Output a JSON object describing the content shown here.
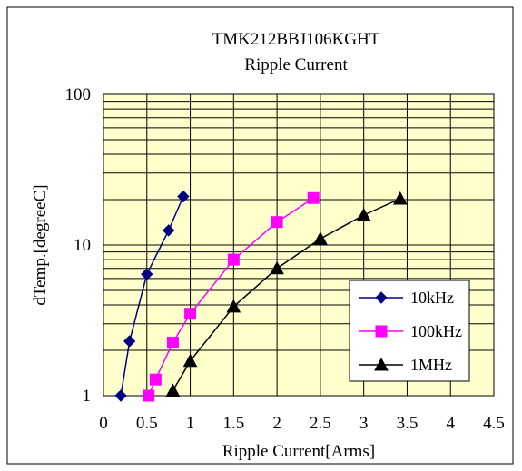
{
  "chart_data": {
    "type": "line",
    "title": "TMK212BBJ106KGHT",
    "subtitle": "Ripple Current",
    "xlabel": "Ripple Current[Arms]",
    "ylabel": "dTemp.[degreeC]",
    "xlim": [
      0,
      4.5
    ],
    "ylim": [
      1,
      100
    ],
    "yscale": "log",
    "grid": true,
    "legend_position": "bottom-right",
    "x_ticks": [
      "0",
      "0.5",
      "1",
      "1.5",
      "2",
      "2.5",
      "3",
      "3.5",
      "4",
      "4.5"
    ],
    "x_tick_values": [
      0,
      0.5,
      1,
      1.5,
      2,
      2.5,
      3,
      3.5,
      4,
      4.5
    ],
    "y_ticks": [
      "1",
      "10",
      "100"
    ],
    "y_tick_values": [
      1,
      10,
      100
    ],
    "plot_background": "#ffffcc",
    "series": [
      {
        "name": "10kHz",
        "color": "#000080",
        "marker": "diamond",
        "points": [
          [
            0.2,
            1.0
          ],
          [
            0.3,
            2.3
          ],
          [
            0.5,
            6.4
          ],
          [
            0.75,
            12.5
          ],
          [
            0.92,
            21.0
          ]
        ]
      },
      {
        "name": "100kHz",
        "color": "#ff00ff",
        "marker": "square",
        "points": [
          [
            0.52,
            1.0
          ],
          [
            0.6,
            1.28
          ],
          [
            0.8,
            2.25
          ],
          [
            1.0,
            3.5
          ],
          [
            1.5,
            8.0
          ],
          [
            2.0,
            14.2
          ],
          [
            2.42,
            20.5
          ]
        ]
      },
      {
        "name": "1MHz",
        "color": "#000000",
        "marker": "triangle",
        "points": [
          [
            0.8,
            1.08
          ],
          [
            1.0,
            1.7
          ],
          [
            1.5,
            3.9
          ],
          [
            2.0,
            7.0
          ],
          [
            2.5,
            11.0
          ],
          [
            3.0,
            15.8
          ],
          [
            3.42,
            20.3
          ]
        ]
      }
    ]
  }
}
